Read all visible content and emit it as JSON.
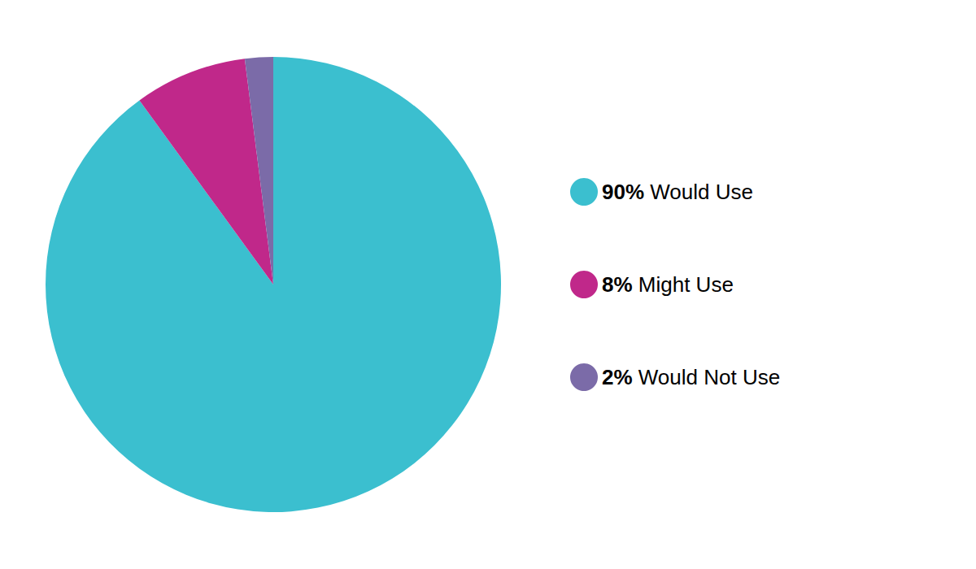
{
  "chart_data": {
    "type": "pie",
    "categories": [
      "Would Use",
      "Might Use",
      "Would Not Use"
    ],
    "values": [
      90,
      8,
      2
    ],
    "value_labels": [
      "90%",
      "8%",
      "2%"
    ],
    "colors": [
      "#3BBFCF",
      "#C0288A",
      "#7B6BA8"
    ],
    "legend": "right"
  }
}
